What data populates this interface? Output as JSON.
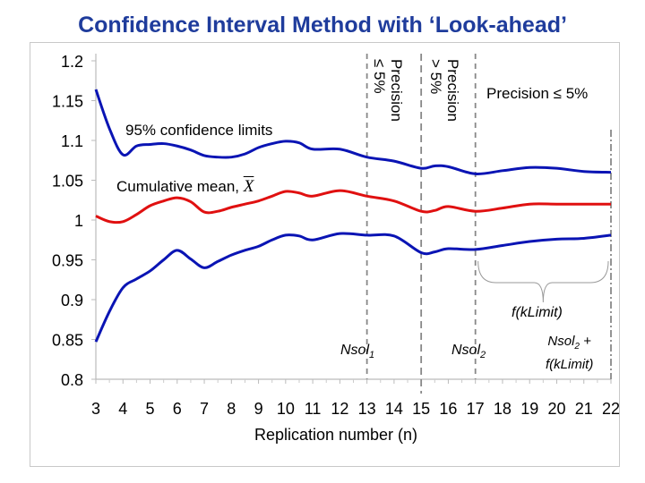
{
  "title": "Confidence Interval Method with ‘Look-ahead’",
  "chart_data": {
    "type": "line",
    "xlabel": "Replication number (n)",
    "ylabel": "",
    "xlim": [
      3,
      22
    ],
    "ylim": [
      0.8,
      1.2
    ],
    "xticks": [
      3,
      4,
      5,
      6,
      7,
      8,
      9,
      10,
      11,
      12,
      13,
      14,
      15,
      16,
      17,
      18,
      19,
      20,
      21,
      22
    ],
    "yticks": [
      0.8,
      0.85,
      0.9,
      0.95,
      1,
      1.05,
      1.1,
      1.15,
      1.2
    ],
    "ytick_labels": [
      "0.8",
      "0.85",
      "0.9",
      "0.95",
      "1",
      "1.05",
      "1.1",
      "1.15",
      "1.2"
    ],
    "grid": false,
    "x": [
      3,
      3.5,
      4,
      4.5,
      5,
      5.5,
      6,
      6.5,
      7,
      7.5,
      8,
      8.5,
      9,
      9.5,
      10,
      10.5,
      11,
      12,
      13,
      14,
      15,
      15.5,
      16,
      17,
      18,
      19,
      20,
      21,
      22
    ],
    "series": [
      {
        "role": "upper-confidence-limit",
        "color": "#0a14b4",
        "values": [
          1.164,
          1.115,
          1.082,
          1.093,
          1.095,
          1.096,
          1.093,
          1.088,
          1.081,
          1.079,
          1.079,
          1.083,
          1.091,
          1.096,
          1.099,
          1.097,
          1.089,
          1.089,
          1.079,
          1.074,
          1.065,
          1.068,
          1.067,
          1.058,
          1.062,
          1.066,
          1.065,
          1.061,
          1.06
        ]
      },
      {
        "role": "cumulative-mean",
        "color": "#e01010",
        "values": [
          1.005,
          0.998,
          0.998,
          1.007,
          1.018,
          1.024,
          1.028,
          1.023,
          1.01,
          1.011,
          1.016,
          1.02,
          1.024,
          1.03,
          1.036,
          1.034,
          1.03,
          1.037,
          1.03,
          1.024,
          1.011,
          1.012,
          1.017,
          1.011,
          1.015,
          1.02,
          1.02,
          1.02,
          1.02
        ]
      },
      {
        "role": "lower-confidence-limit",
        "color": "#0a14b4",
        "values": [
          0.847,
          0.885,
          0.915,
          0.926,
          0.936,
          0.95,
          0.962,
          0.951,
          0.94,
          0.948,
          0.956,
          0.962,
          0.967,
          0.975,
          0.981,
          0.98,
          0.975,
          0.983,
          0.981,
          0.98,
          0.959,
          0.96,
          0.964,
          0.963,
          0.968,
          0.973,
          0.976,
          0.977,
          0.981
        ]
      }
    ],
    "annotations": {
      "ci_label": "95% confidence limits",
      "mean_label": "Cumulative mean, ",
      "mean_symbol": "X",
      "region1_line1": "Precision",
      "region1_line2": "≤ 5%",
      "region2_line1": "Precision",
      "region2_line2": "> 5%",
      "region3": "Precision ≤ 5%",
      "brace_label": "f(kLimit)",
      "nsol1": "Nsol",
      "nsol1_sub": "1",
      "nsol2": "Nsol",
      "nsol2_sub": "2",
      "end_label_1": "Nsol",
      "end_label_sub": "2",
      "end_label_plus": " +",
      "end_label_2": "f(kLimit)"
    },
    "marker_lines": [
      13,
      15,
      17,
      22
    ]
  }
}
